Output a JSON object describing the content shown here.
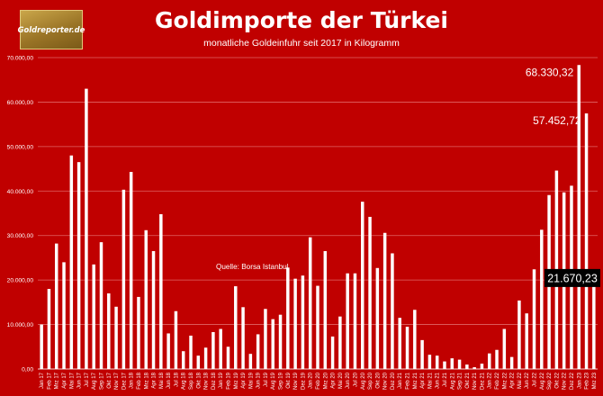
{
  "logo": {
    "text": "Goldreporter.de"
  },
  "chart_data": {
    "type": "bar",
    "title": "Goldimporte der Türkei",
    "subtitle": "monatliche Goldeinfuhr seit 2017 in Kilogramm",
    "source": "Quelle: Borsa Istanbul",
    "xlabel": "",
    "ylabel": "",
    "ylim": [
      0,
      70000
    ],
    "yticks": [
      0,
      10000,
      20000,
      30000,
      40000,
      50000,
      60000,
      70000
    ],
    "ytick_labels": [
      "0,00",
      "10.000,00",
      "20.000,00",
      "30.000,00",
      "40.000,00",
      "50.000,00",
      "60.000,00",
      "70.000,00"
    ],
    "grid": true,
    "legend": "none",
    "colors": {
      "background": "#c00000",
      "bars": "#ffffff",
      "gridlines": "#e06666",
      "highlight_label_bg": "#000000"
    },
    "categories": [
      "Jan 17",
      "Feb 17",
      "Mrz 17",
      "Apr 17",
      "Mai 17",
      "Jun 17",
      "Jul 17",
      "Aug 17",
      "Sep 17",
      "Okt 17",
      "Nov 17",
      "Dez 17",
      "Jan 18",
      "Feb 18",
      "Mrz 18",
      "Apr 18",
      "Mai 18",
      "Jun 18",
      "Jul 18",
      "Aug 18",
      "Sep 18",
      "Okt 18",
      "Nov 18",
      "Dez 18",
      "Jan 19",
      "Feb 19",
      "Mrz 19",
      "Apr 19",
      "Mai 19",
      "Jun 19",
      "Jul 19",
      "Aug 19",
      "Sep 19",
      "Okt 19",
      "Nov 19",
      "Dez 19",
      "Jan 20",
      "Feb 20",
      "Mrz 20",
      "Apr 20",
      "Mai 20",
      "Jun 20",
      "Jul 20",
      "Aug 20",
      "Sep 20",
      "Okt 20",
      "Nov 20",
      "Dez 20",
      "Jan 21",
      "Feb 21",
      "Mrz 21",
      "Apr 21",
      "Mai 21",
      "Jun 21",
      "Jul 21",
      "Aug 21",
      "Sep 21",
      "Okt 21",
      "Nov 21",
      "Dez 21",
      "Jan 22",
      "Feb 22",
      "Mrz 22",
      "Apr 22",
      "Mai 22",
      "Jun 22",
      "Jul 22",
      "Aug 22",
      "Sep 22",
      "Okt 22",
      "Nov 22",
      "Dez 22",
      "Jan 23",
      "Feb 23",
      "Mrz 23"
    ],
    "values": [
      10000,
      18000,
      28200,
      24000,
      48000,
      46500,
      63000,
      23500,
      28500,
      17000,
      14000,
      40300,
      44300,
      16200,
      31200,
      26500,
      34800,
      8000,
      13000,
      4000,
      7500,
      3000,
      4800,
      8300,
      9000,
      5000,
      18600,
      13900,
      3400,
      7800,
      13500,
      11200,
      12200,
      22800,
      20300,
      21000,
      29600,
      18700,
      26500,
      7300,
      11800,
      21500,
      21500,
      37600,
      34200,
      22700,
      30600,
      26000,
      11500,
      9500,
      13300,
      6500,
      3200,
      3000,
      1700,
      2400,
      2100,
      1000,
      400,
      1200,
      3500,
      4300,
      9000,
      2700,
      15400,
      12500,
      22400,
      31300,
      39100,
      44600,
      39700,
      41200,
      68330.32,
      57452.72,
      21670.23
    ],
    "annotations": [
      {
        "category": "Jan 23",
        "value": 68330.32,
        "text": "68.330,32",
        "boxed": false
      },
      {
        "category": "Feb 23",
        "value": 57452.72,
        "text": "57.452,72",
        "boxed": false
      },
      {
        "category": "Mrz 23",
        "value": 21670.23,
        "text": "21.670,23",
        "boxed": true
      }
    ]
  }
}
